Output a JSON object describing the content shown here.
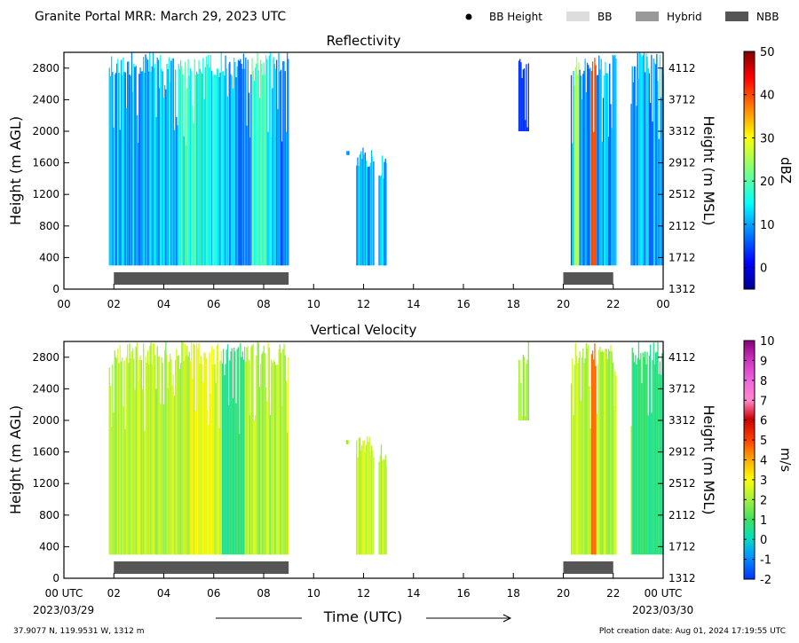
{
  "header": {
    "title": "Granite Portal MRR:  March 29, 2023 UTC",
    "legend": [
      {
        "label": "BB Height",
        "color": "#000000",
        "kind": "dot"
      },
      {
        "label": "BB",
        "color": "#dddddd",
        "kind": "rect"
      },
      {
        "label": "Hybrid",
        "color": "#999999",
        "kind": "rect"
      },
      {
        "label": "NBB",
        "color": "#555555",
        "kind": "rect"
      }
    ]
  },
  "footer": {
    "location": "37.9077 N, 119.9531 W, 1312 m",
    "creation": "Plot creation date: Aug 01, 2024 17:19:55 UTC",
    "start_date": "2023/03/29",
    "end_date": "2023/03/30",
    "xlabel": "Time (UTC)"
  },
  "chart_data": [
    {
      "type": "heatmap",
      "title": "Reflectivity",
      "ylabel": "Height (m AGL)",
      "ylabel_right": "Height (m MSL)",
      "colorbar_label": "dBZ",
      "colorbar_ticks": [
        0,
        10,
        20,
        30,
        40,
        50
      ],
      "colorbar_range": [
        -5,
        50
      ],
      "ylim": [
        0,
        3000
      ],
      "yticks": [
        0,
        400,
        800,
        1200,
        1600,
        2000,
        2400,
        2800
      ],
      "yticks_right": [
        1312,
        1712,
        2112,
        2512,
        2912,
        3312,
        3712,
        4112
      ],
      "xlim": [
        0,
        24
      ],
      "xticks": [
        "00",
        "02",
        "04",
        "06",
        "08",
        "10",
        "12",
        "14",
        "16",
        "18",
        "20",
        "22",
        "00"
      ],
      "echo_segments": [
        {
          "start": 1.8,
          "end": 9.0,
          "base": 300,
          "top": 3000
        },
        {
          "start": 11.3,
          "end": 11.4,
          "base": 1700,
          "top": 1800
        },
        {
          "start": 11.7,
          "end": 12.4,
          "base": 300,
          "top": 1800
        },
        {
          "start": 12.6,
          "end": 12.9,
          "base": 300,
          "top": 1700
        },
        {
          "start": 18.2,
          "end": 18.6,
          "base": 2000,
          "top": 3000
        },
        {
          "start": 20.3,
          "end": 22.1,
          "base": 300,
          "top": 3000
        },
        {
          "start": 22.7,
          "end": 24.0,
          "base": 300,
          "top": 3000
        }
      ],
      "nbb_bars": [
        {
          "start": 2.0,
          "end": 9.0
        },
        {
          "start": 20.0,
          "end": 22.0
        }
      ]
    },
    {
      "type": "heatmap",
      "title": "Vertical Velocity",
      "ylabel": "Height (m AGL)",
      "ylabel_right": "Height (m MSL)",
      "colorbar_label": "m/s",
      "colorbar_ticks": [
        -2,
        -1,
        0,
        1,
        2,
        3,
        4,
        5,
        6,
        7,
        8,
        9,
        10
      ],
      "colorbar_range": [
        -2,
        10
      ],
      "ylim": [
        0,
        3000
      ],
      "yticks": [
        0,
        400,
        800,
        1200,
        1600,
        2000,
        2400,
        2800
      ],
      "yticks_right": [
        1312,
        1712,
        2112,
        2512,
        2912,
        3312,
        3712,
        4112
      ],
      "xlim": [
        0,
        24
      ],
      "xticks": [
        "00 UTC",
        "02",
        "04",
        "06",
        "08",
        "10",
        "12",
        "14",
        "16",
        "18",
        "20",
        "22",
        "00 UTC"
      ],
      "echo_segments": [
        {
          "start": 1.8,
          "end": 9.0,
          "base": 300,
          "top": 3000
        },
        {
          "start": 11.3,
          "end": 11.4,
          "base": 1700,
          "top": 1800
        },
        {
          "start": 11.7,
          "end": 12.4,
          "base": 300,
          "top": 1800
        },
        {
          "start": 12.6,
          "end": 12.9,
          "base": 300,
          "top": 1700
        },
        {
          "start": 18.2,
          "end": 18.6,
          "base": 2000,
          "top": 3000
        },
        {
          "start": 20.3,
          "end": 22.1,
          "base": 300,
          "top": 3000
        },
        {
          "start": 22.7,
          "end": 24.0,
          "base": 300,
          "top": 3000
        }
      ],
      "nbb_bars": [
        {
          "start": 2.0,
          "end": 9.0
        },
        {
          "start": 20.0,
          "end": 22.0
        }
      ]
    }
  ]
}
